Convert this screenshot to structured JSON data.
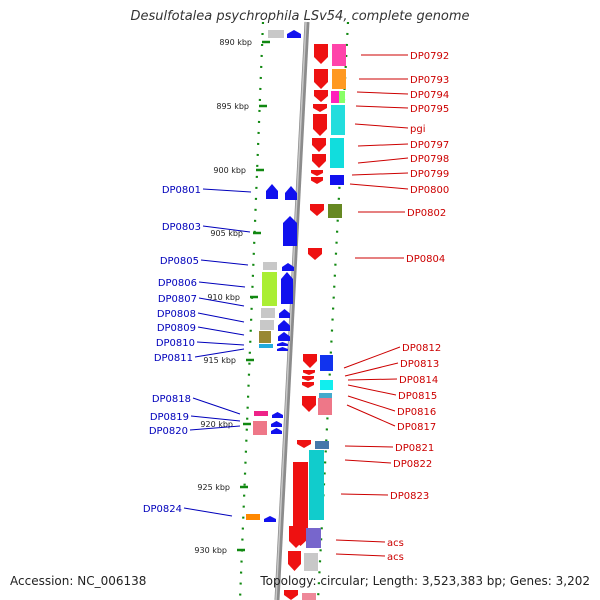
{
  "title": "Desulfotalea psychrophila LSv54, complete genome",
  "accession": "Accession: NC_006138",
  "stats": "Topology: circular; Length: 3,523,383 bp; Genes: 3,202",
  "colors": {
    "reverse_label": "#cc0000",
    "forward_label": "#0000bb",
    "backbone": "#8c8c8c",
    "tick": "#118811"
  },
  "ticks": [
    {
      "label": "890 kbp",
      "kbp": 890
    },
    {
      "label": "895 kbp",
      "kbp": 895
    },
    {
      "label": "900 kbp",
      "kbp": 900
    },
    {
      "label": "905 kbp",
      "kbp": 905
    },
    {
      "label": "910 kbp",
      "kbp": 910
    },
    {
      "label": "915 kbp",
      "kbp": 915
    },
    {
      "label": "920 kbp",
      "kbp": 920
    },
    {
      "label": "925 kbp",
      "kbp": 925
    },
    {
      "label": "930 kbp",
      "kbp": 930
    }
  ],
  "right_labels": [
    "DP0792",
    "DP0793",
    "DP0794",
    "DP0795",
    "pgi",
    "DP0797",
    "DP0798",
    "DP0799",
    "DP0800",
    "DP0802",
    "DP0804",
    "DP0812",
    "DP0813",
    "DP0814",
    "DP0815",
    "DP0816",
    "DP0817",
    "DP0821",
    "DP0822",
    "DP0823",
    "acs",
    "acs"
  ],
  "left_labels": [
    "DP0801",
    "DP0803",
    "DP0805",
    "DP0806",
    "DP0807",
    "DP0808",
    "DP0809",
    "DP0810",
    "DP0811",
    "DP0818",
    "DP0819",
    "DP0820",
    "DP0824"
  ]
}
